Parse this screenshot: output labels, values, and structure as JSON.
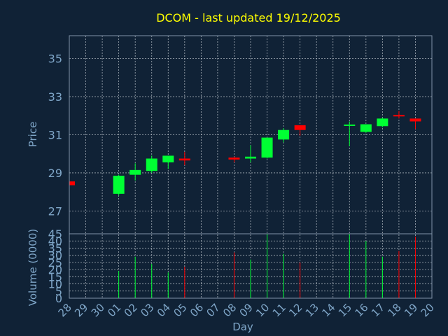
{
  "chart_data": {
    "type": "candlestick",
    "title": "DCOM - last updated 19/12/2025",
    "xlabel": "Day",
    "price_panel": {
      "ylabel": "Price",
      "ylim": [
        25.8,
        36.2
      ],
      "yticks": [
        27,
        29,
        31,
        33,
        35
      ]
    },
    "volume_panel": {
      "ylabel": "Volume (0000)",
      "ylim": [
        0,
        45
      ],
      "yticks": [
        0,
        5,
        10,
        15,
        20,
        25,
        30,
        35,
        40,
        45
      ]
    },
    "grid": true,
    "x_tick_labels": [
      "28",
      "29",
      "30",
      "01",
      "02",
      "03",
      "04",
      "05",
      "06",
      "07",
      "08",
      "09",
      "10",
      "11",
      "12",
      "13",
      "14",
      "15",
      "16",
      "17",
      "18",
      "19",
      "20"
    ],
    "candles": [
      {
        "day": "28",
        "open": 28.55,
        "high": 28.6,
        "low": 28.3,
        "close": 28.35,
        "volume": 0
      },
      {
        "day": "01",
        "open": 27.9,
        "high": 28.9,
        "low": 27.8,
        "close": 28.85,
        "volume": 19
      },
      {
        "day": "02",
        "open": 28.9,
        "high": 29.5,
        "low": 28.6,
        "close": 29.15,
        "volume": 29
      },
      {
        "day": "03",
        "open": 29.1,
        "high": 29.9,
        "low": 29.0,
        "close": 29.75,
        "volume": 24
      },
      {
        "day": "04",
        "open": 29.55,
        "high": 29.9,
        "low": 29.2,
        "close": 29.9,
        "volume": 18
      },
      {
        "day": "05",
        "open": 29.75,
        "high": 30.1,
        "low": 29.4,
        "close": 29.65,
        "volume": 22
      },
      {
        "day": "08",
        "open": 29.8,
        "high": 29.85,
        "low": 29.55,
        "close": 29.7,
        "volume": 32
      },
      {
        "day": "09",
        "open": 29.75,
        "high": 30.45,
        "low": 29.55,
        "close": 29.85,
        "volume": 27
      },
      {
        "day": "10",
        "open": 29.8,
        "high": 30.85,
        "low": 29.75,
        "close": 30.85,
        "volume": 45
      },
      {
        "day": "11",
        "open": 30.75,
        "high": 31.35,
        "low": 30.6,
        "close": 31.25,
        "volume": 31
      },
      {
        "day": "12",
        "open": 31.5,
        "high": 31.5,
        "low": 30.95,
        "close": 31.25,
        "volume": 25
      },
      {
        "day": "15",
        "open": 31.45,
        "high": 31.7,
        "low": 30.4,
        "close": 31.5,
        "volume": 45
      },
      {
        "day": "16",
        "open": 31.15,
        "high": 31.55,
        "low": 31.1,
        "close": 31.55,
        "volume": 40
      },
      {
        "day": "17",
        "open": 31.45,
        "high": 31.9,
        "low": 31.4,
        "close": 31.85,
        "volume": 29
      },
      {
        "day": "18",
        "open": 32.0,
        "high": 32.25,
        "low": 31.85,
        "close": 31.95,
        "volume": 33
      },
      {
        "day": "19",
        "open": 31.85,
        "high": 31.85,
        "low": 31.3,
        "close": 31.7,
        "volume": 43
      }
    ],
    "colors": {
      "background": "#102236",
      "axis": "#7f93a8",
      "grid": "#d7dde3",
      "text_title": "#ffff00",
      "text_axis": "#7fa6c8",
      "up": "#00ff33",
      "down": "#ff0000"
    }
  }
}
